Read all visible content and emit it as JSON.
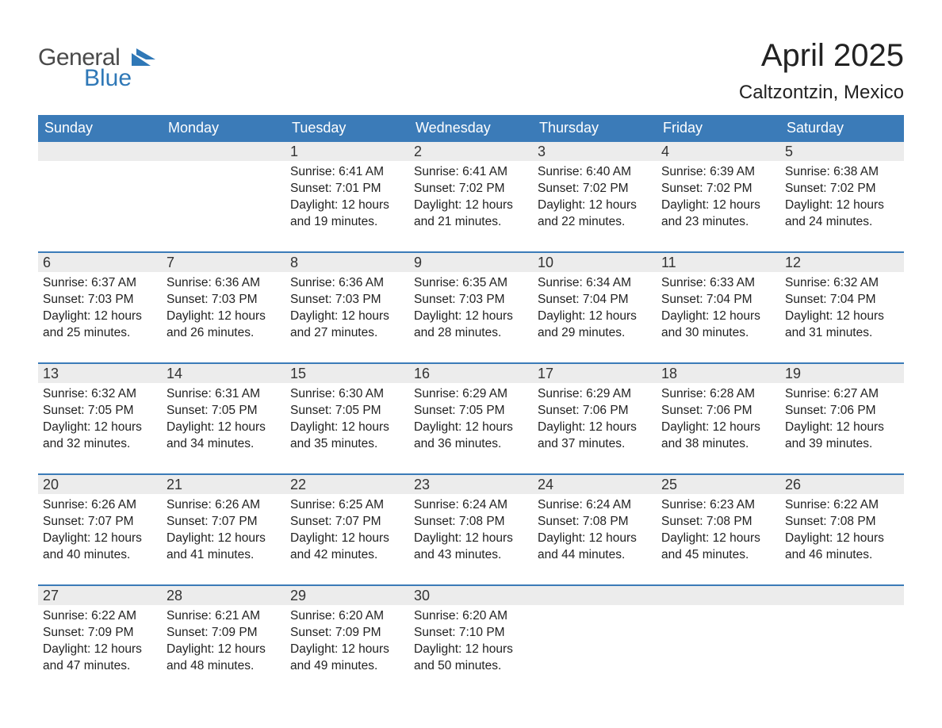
{
  "colors": {
    "header_bg": "#3b7bb8",
    "header_text": "#ffffff",
    "daynum_bg": "#ececec",
    "week_divider": "#3b7bb8",
    "text": "#222222",
    "logo_gray": "#4a4a4a",
    "logo_blue": "#2f78b7",
    "background": "#ffffff"
  },
  "logo": {
    "text1": "General",
    "text2": "Blue"
  },
  "title": "April 2025",
  "location": "Caltzontzin, Mexico",
  "dow": [
    "Sunday",
    "Monday",
    "Tuesday",
    "Wednesday",
    "Thursday",
    "Friday",
    "Saturday"
  ],
  "weeks": [
    [
      null,
      null,
      {
        "n": "1",
        "sunrise": "6:41 AM",
        "sunset": "7:01 PM",
        "daylight": "12 hours and 19 minutes."
      },
      {
        "n": "2",
        "sunrise": "6:41 AM",
        "sunset": "7:02 PM",
        "daylight": "12 hours and 21 minutes."
      },
      {
        "n": "3",
        "sunrise": "6:40 AM",
        "sunset": "7:02 PM",
        "daylight": "12 hours and 22 minutes."
      },
      {
        "n": "4",
        "sunrise": "6:39 AM",
        "sunset": "7:02 PM",
        "daylight": "12 hours and 23 minutes."
      },
      {
        "n": "5",
        "sunrise": "6:38 AM",
        "sunset": "7:02 PM",
        "daylight": "12 hours and 24 minutes."
      }
    ],
    [
      {
        "n": "6",
        "sunrise": "6:37 AM",
        "sunset": "7:03 PM",
        "daylight": "12 hours and 25 minutes."
      },
      {
        "n": "7",
        "sunrise": "6:36 AM",
        "sunset": "7:03 PM",
        "daylight": "12 hours and 26 minutes."
      },
      {
        "n": "8",
        "sunrise": "6:36 AM",
        "sunset": "7:03 PM",
        "daylight": "12 hours and 27 minutes."
      },
      {
        "n": "9",
        "sunrise": "6:35 AM",
        "sunset": "7:03 PM",
        "daylight": "12 hours and 28 minutes."
      },
      {
        "n": "10",
        "sunrise": "6:34 AM",
        "sunset": "7:04 PM",
        "daylight": "12 hours and 29 minutes."
      },
      {
        "n": "11",
        "sunrise": "6:33 AM",
        "sunset": "7:04 PM",
        "daylight": "12 hours and 30 minutes."
      },
      {
        "n": "12",
        "sunrise": "6:32 AM",
        "sunset": "7:04 PM",
        "daylight": "12 hours and 31 minutes."
      }
    ],
    [
      {
        "n": "13",
        "sunrise": "6:32 AM",
        "sunset": "7:05 PM",
        "daylight": "12 hours and 32 minutes."
      },
      {
        "n": "14",
        "sunrise": "6:31 AM",
        "sunset": "7:05 PM",
        "daylight": "12 hours and 34 minutes."
      },
      {
        "n": "15",
        "sunrise": "6:30 AM",
        "sunset": "7:05 PM",
        "daylight": "12 hours and 35 minutes."
      },
      {
        "n": "16",
        "sunrise": "6:29 AM",
        "sunset": "7:05 PM",
        "daylight": "12 hours and 36 minutes."
      },
      {
        "n": "17",
        "sunrise": "6:29 AM",
        "sunset": "7:06 PM",
        "daylight": "12 hours and 37 minutes."
      },
      {
        "n": "18",
        "sunrise": "6:28 AM",
        "sunset": "7:06 PM",
        "daylight": "12 hours and 38 minutes."
      },
      {
        "n": "19",
        "sunrise": "6:27 AM",
        "sunset": "7:06 PM",
        "daylight": "12 hours and 39 minutes."
      }
    ],
    [
      {
        "n": "20",
        "sunrise": "6:26 AM",
        "sunset": "7:07 PM",
        "daylight": "12 hours and 40 minutes."
      },
      {
        "n": "21",
        "sunrise": "6:26 AM",
        "sunset": "7:07 PM",
        "daylight": "12 hours and 41 minutes."
      },
      {
        "n": "22",
        "sunrise": "6:25 AM",
        "sunset": "7:07 PM",
        "daylight": "12 hours and 42 minutes."
      },
      {
        "n": "23",
        "sunrise": "6:24 AM",
        "sunset": "7:08 PM",
        "daylight": "12 hours and 43 minutes."
      },
      {
        "n": "24",
        "sunrise": "6:24 AM",
        "sunset": "7:08 PM",
        "daylight": "12 hours and 44 minutes."
      },
      {
        "n": "25",
        "sunrise": "6:23 AM",
        "sunset": "7:08 PM",
        "daylight": "12 hours and 45 minutes."
      },
      {
        "n": "26",
        "sunrise": "6:22 AM",
        "sunset": "7:08 PM",
        "daylight": "12 hours and 46 minutes."
      }
    ],
    [
      {
        "n": "27",
        "sunrise": "6:22 AM",
        "sunset": "7:09 PM",
        "daylight": "12 hours and 47 minutes."
      },
      {
        "n": "28",
        "sunrise": "6:21 AM",
        "sunset": "7:09 PM",
        "daylight": "12 hours and 48 minutes."
      },
      {
        "n": "29",
        "sunrise": "6:20 AM",
        "sunset": "7:09 PM",
        "daylight": "12 hours and 49 minutes."
      },
      {
        "n": "30",
        "sunrise": "6:20 AM",
        "sunset": "7:10 PM",
        "daylight": "12 hours and 50 minutes."
      },
      null,
      null,
      null
    ]
  ],
  "labels": {
    "sunrise": "Sunrise: ",
    "sunset": "Sunset: ",
    "daylight": "Daylight: "
  }
}
